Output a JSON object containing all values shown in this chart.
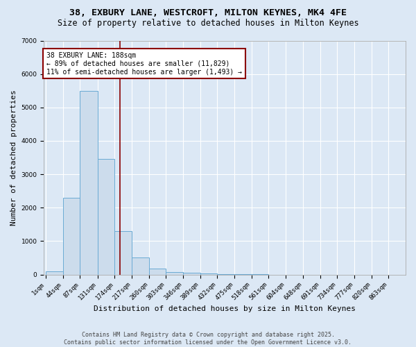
{
  "title1": "38, EXBURY LANE, WESTCROFT, MILTON KEYNES, MK4 4FE",
  "title2": "Size of property relative to detached houses in Milton Keynes",
  "xlabel": "Distribution of detached houses by size in Milton Keynes",
  "ylabel": "Number of detached properties",
  "bin_labels": [
    "1sqm",
    "44sqm",
    "87sqm",
    "131sqm",
    "174sqm",
    "217sqm",
    "260sqm",
    "303sqm",
    "346sqm",
    "389sqm",
    "432sqm",
    "475sqm",
    "518sqm",
    "561sqm",
    "604sqm",
    "648sqm",
    "691sqm",
    "734sqm",
    "777sqm",
    "820sqm",
    "863sqm"
  ],
  "bin_edges": [
    1,
    44,
    87,
    131,
    174,
    217,
    260,
    303,
    346,
    389,
    432,
    475,
    518,
    561,
    604,
    648,
    691,
    734,
    777,
    820,
    863
  ],
  "bar_heights": [
    100,
    2300,
    5500,
    3450,
    1300,
    500,
    175,
    75,
    50,
    30,
    5,
    3,
    2,
    1,
    0,
    0,
    0,
    0,
    0,
    0
  ],
  "bar_color": "#ccdcec",
  "bar_edge_color": "#6aaad4",
  "property_size": 188,
  "vline_color": "#8b0000",
  "annotation_line1": "38 EXBURY LANE: 188sqm",
  "annotation_line2": "← 89% of detached houses are smaller (11,829)",
  "annotation_line3": "11% of semi-detached houses are larger (1,493) →",
  "annotation_box_color": "#8b0000",
  "annotation_bg": "#ffffff",
  "ylim": [
    0,
    7000
  ],
  "yticks": [
    0,
    1000,
    2000,
    3000,
    4000,
    5000,
    6000,
    7000
  ],
  "background_color": "#dce8f5",
  "grid_color": "#ffffff",
  "footer_line1": "Contains HM Land Registry data © Crown copyright and database right 2025.",
  "footer_line2": "Contains public sector information licensed under the Open Government Licence v3.0.",
  "title1_fontsize": 9.5,
  "title2_fontsize": 8.5,
  "xlabel_fontsize": 8,
  "ylabel_fontsize": 8,
  "tick_fontsize": 6.5,
  "annotation_fontsize": 7,
  "footer_fontsize": 6
}
